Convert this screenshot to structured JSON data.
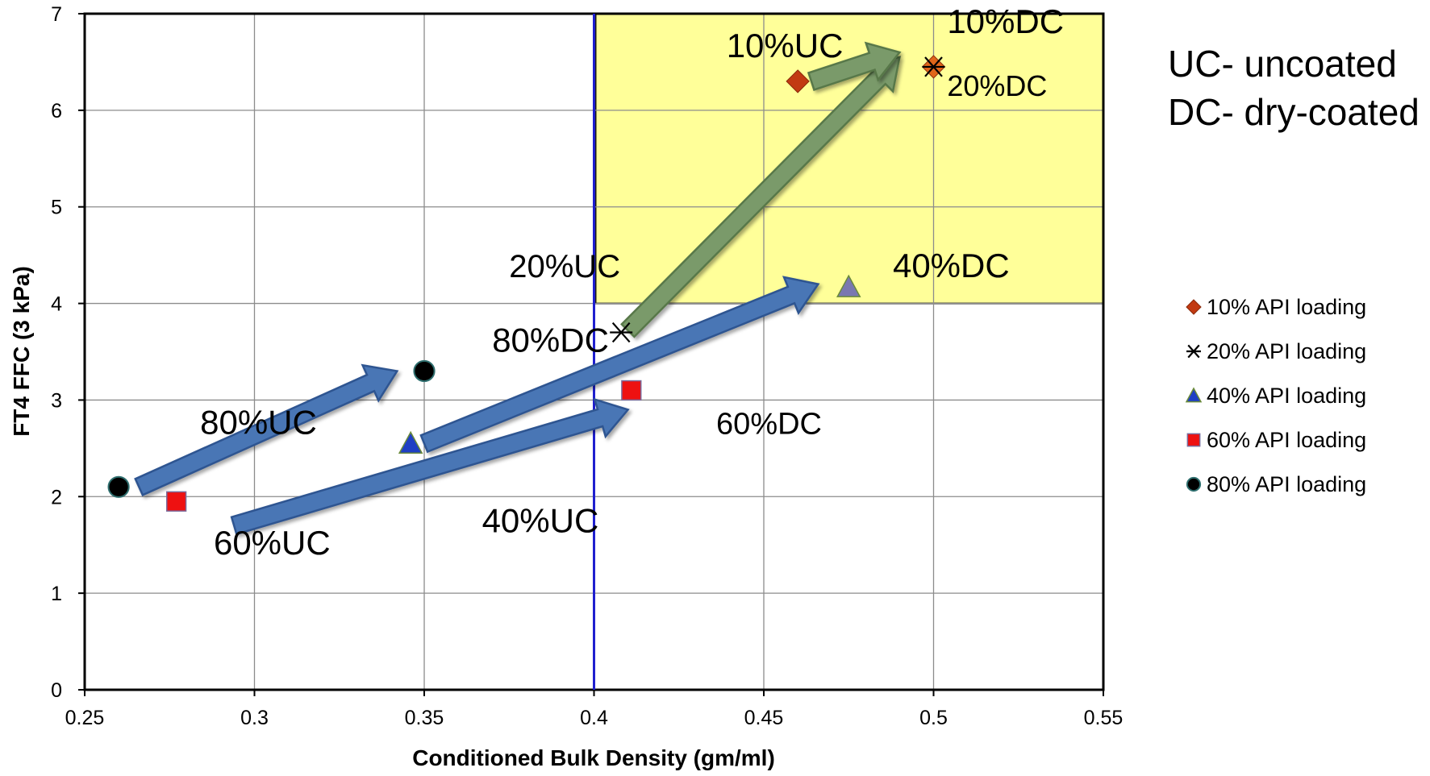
{
  "chart_data": {
    "type": "scatter",
    "xlabel": "Conditioned Bulk Density (gm/ml)",
    "ylabel": "FT4 FFC (3 kPa)",
    "xlim": [
      0.25,
      0.55
    ],
    "ylim": [
      0,
      7
    ],
    "xticks": [
      "0.25",
      "0.3",
      "0.35",
      "0.4",
      "0.45",
      "0.5",
      "0.55"
    ],
    "yticks": [
      "0",
      "1",
      "2",
      "3",
      "4",
      "5",
      "6",
      "7"
    ],
    "grid": true,
    "legend_position": "right",
    "colors": {
      "highlight_region": "#ffff99",
      "highlight_border": "#1a1a1a",
      "threshold_line": "#1f1fcf",
      "blue_arrow": "#4a76b5",
      "green_arrow": "#7a9a6a"
    },
    "series": [
      {
        "name": "10% API loading",
        "marker": "diamond",
        "color": "#c23a12",
        "points": [
          {
            "x": 0.46,
            "y": 6.3,
            "label": "10%UC"
          },
          {
            "x": 0.5,
            "y": 6.45,
            "label": "10%DC"
          }
        ]
      },
      {
        "name": "20% API loading",
        "marker": "star",
        "color": "#000000",
        "points": [
          {
            "x": 0.408,
            "y": 3.7,
            "label": "20%UC"
          },
          {
            "x": 0.5,
            "y": 6.45,
            "label": "20%DC"
          }
        ]
      },
      {
        "name": "40% API loading",
        "marker": "triangle",
        "color": "#1f3fc4",
        "points": [
          {
            "x": 0.346,
            "y": 2.55,
            "label": "40%UC"
          },
          {
            "x": 0.475,
            "y": 4.17,
            "label": "40%DC"
          }
        ]
      },
      {
        "name": "60% API loading",
        "marker": "square",
        "color": "#ee1111",
        "points": [
          {
            "x": 0.277,
            "y": 1.95,
            "label": "60%UC"
          },
          {
            "x": 0.411,
            "y": 3.1,
            "label": "60%DC"
          }
        ]
      },
      {
        "name": "80% API loading",
        "marker": "circle",
        "color": "#000000",
        "points": [
          {
            "x": 0.26,
            "y": 2.1,
            "label": "80%UC"
          },
          {
            "x": 0.35,
            "y": 3.3,
            "label": "80%DC"
          }
        ]
      }
    ],
    "highlight_region": {
      "x": [
        0.4,
        0.55
      ],
      "y": [
        4.0,
        7.0
      ]
    },
    "threshold_line_x": 0.4,
    "arrows": [
      {
        "from": [
          0.266,
          2.1
        ],
        "to": [
          0.342,
          3.3
        ],
        "color": "blue"
      },
      {
        "from": [
          0.294,
          1.7
        ],
        "to": [
          0.41,
          2.9
        ],
        "color": "blue"
      },
      {
        "from": [
          0.35,
          2.55
        ],
        "to": [
          0.466,
          4.2
        ],
        "color": "blue"
      },
      {
        "from": [
          0.41,
          3.72
        ],
        "to": [
          0.49,
          6.55
        ],
        "color": "green"
      },
      {
        "from": [
          0.464,
          6.3
        ],
        "to": [
          0.49,
          6.6
        ],
        "color": "green"
      }
    ],
    "point_labels": [
      {
        "text": "10%UC",
        "x": 0.439,
        "y": 6.55,
        "size": 42,
        "color": "#3f3f00"
      },
      {
        "text": "10%DC",
        "x": 0.504,
        "y": 6.8,
        "size": 42,
        "color": "#3f3f00"
      },
      {
        "text": "20%DC",
        "x": 0.504,
        "y": 6.15,
        "size": 36,
        "color": "#3f3f00"
      },
      {
        "text": "20%UC",
        "x": 0.375,
        "y": 4.27,
        "size": 40,
        "color": "#3f3f00"
      },
      {
        "text": "40%DC",
        "x": 0.488,
        "y": 4.27,
        "size": 42,
        "color": "#3f3f00"
      },
      {
        "text": "80%DC",
        "x": 0.37,
        "y": 3.5,
        "size": 42,
        "color": "#000000"
      },
      {
        "text": "80%UC",
        "x": 0.284,
        "y": 2.65,
        "size": 42,
        "color": "#000000"
      },
      {
        "text": "60%DC",
        "x": 0.436,
        "y": 2.65,
        "size": 38,
        "color": "#000000"
      },
      {
        "text": "40%UC",
        "x": 0.367,
        "y": 1.63,
        "size": 42,
        "color": "#000000"
      },
      {
        "text": "60%UC",
        "x": 0.288,
        "y": 1.4,
        "size": 42,
        "color": "#000000"
      }
    ]
  },
  "annotations": {
    "uc_note": "UC- uncoated",
    "dc_note": "DC- dry-coated"
  }
}
